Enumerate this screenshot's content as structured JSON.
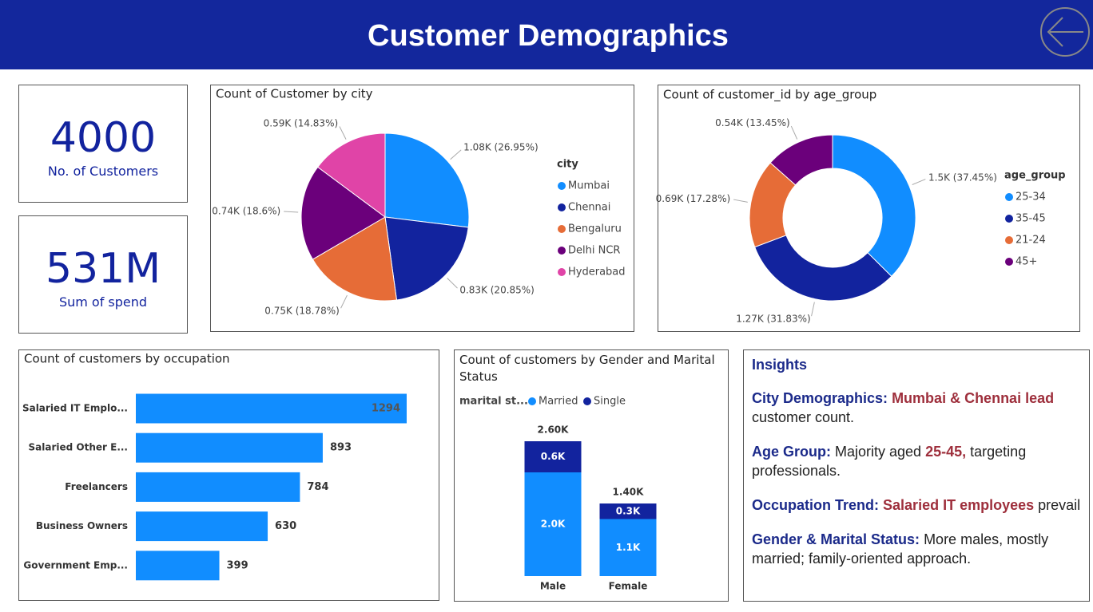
{
  "header": {
    "title": "Customer Demographics"
  },
  "kpis": [
    {
      "value": "4000",
      "label": "No. of Customers"
    },
    {
      "value": "531M",
      "label": "Sum of spend"
    }
  ],
  "chart_data": [
    {
      "type": "pie",
      "title": "Count of Customer by city",
      "legend_title": "city",
      "categories": [
        "Mumbai",
        "Chennai",
        "Bengaluru",
        "Delhi NCR",
        "Hyderabad"
      ],
      "values": [
        1078,
        834,
        751,
        744,
        593
      ],
      "value_labels": [
        "1.08K (26.95%)",
        "0.83K (20.85%)",
        "0.75K (18.78%)",
        "0.74K (18.6%)",
        "0.59K (14.83%)"
      ],
      "colors": [
        "#118DFF",
        "#12239E",
        "#E66C37",
        "#6B007B",
        "#E044A7"
      ]
    },
    {
      "type": "donut",
      "title": "Count of customer_id by age_group",
      "legend_title": "age_group",
      "categories": [
        "25-34",
        "35-45",
        "21-24",
        "45+"
      ],
      "values": [
        1498,
        1273,
        691,
        538
      ],
      "value_labels": [
        "1.5K (37.45%)",
        "1.27K (31.83%)",
        "0.69K (17.28%)",
        "0.54K (13.45%)"
      ],
      "colors": [
        "#118DFF",
        "#12239E",
        "#E66C37",
        "#6B007B"
      ]
    },
    {
      "type": "bar",
      "orientation": "horizontal",
      "title": "Count of customers by occupation",
      "categories": [
        "Salaried IT Emplo...",
        "Salaried Other E...",
        "Freelancers",
        "Business Owners",
        "Government Emp..."
      ],
      "values": [
        1294,
        893,
        784,
        630,
        399
      ],
      "color": "#118DFF"
    },
    {
      "type": "stacked_bar",
      "title": "Count of customers by Gender and Marital Status",
      "legend_title": "marital st...",
      "categories": [
        "Male",
        "Female"
      ],
      "total_labels": [
        "2.60K",
        "1.40K"
      ],
      "series": [
        {
          "name": "Married",
          "color": "#118DFF",
          "values": [
            2000,
            1100
          ],
          "value_labels": [
            "2.0K",
            "1.1K"
          ]
        },
        {
          "name": "Single",
          "color": "#12239E",
          "values": [
            600,
            300
          ],
          "value_labels": [
            "0.6K",
            "0.3K"
          ]
        }
      ]
    }
  ],
  "insights": {
    "title": "Insights",
    "items": [
      {
        "segments": [
          {
            "text": "City Demographics:",
            "style": "heading"
          },
          {
            "text": "Mumbai & Chennai lead",
            "style": "highlight"
          },
          {
            "text": "customer count.",
            "style": "plain"
          }
        ]
      },
      {
        "segments": [
          {
            "text": "Age Group:",
            "style": "heading"
          },
          {
            "text": "Majority aged",
            "style": "plain"
          },
          {
            "text": "25-45,",
            "style": "highlight"
          },
          {
            "text": "targeting professionals.",
            "style": "plain"
          }
        ]
      },
      {
        "segments": [
          {
            "text": "Occupation Trend:",
            "style": "heading"
          },
          {
            "text": "Salaried IT employees",
            "style": "highlight"
          },
          {
            "text": "prevail",
            "style": "plain"
          }
        ]
      },
      {
        "segments": [
          {
            "text": "Gender & Marital Status:",
            "style": "heading"
          },
          {
            "text": "More males, mostly married; family-oriented approach.",
            "style": "plain"
          }
        ]
      }
    ]
  }
}
